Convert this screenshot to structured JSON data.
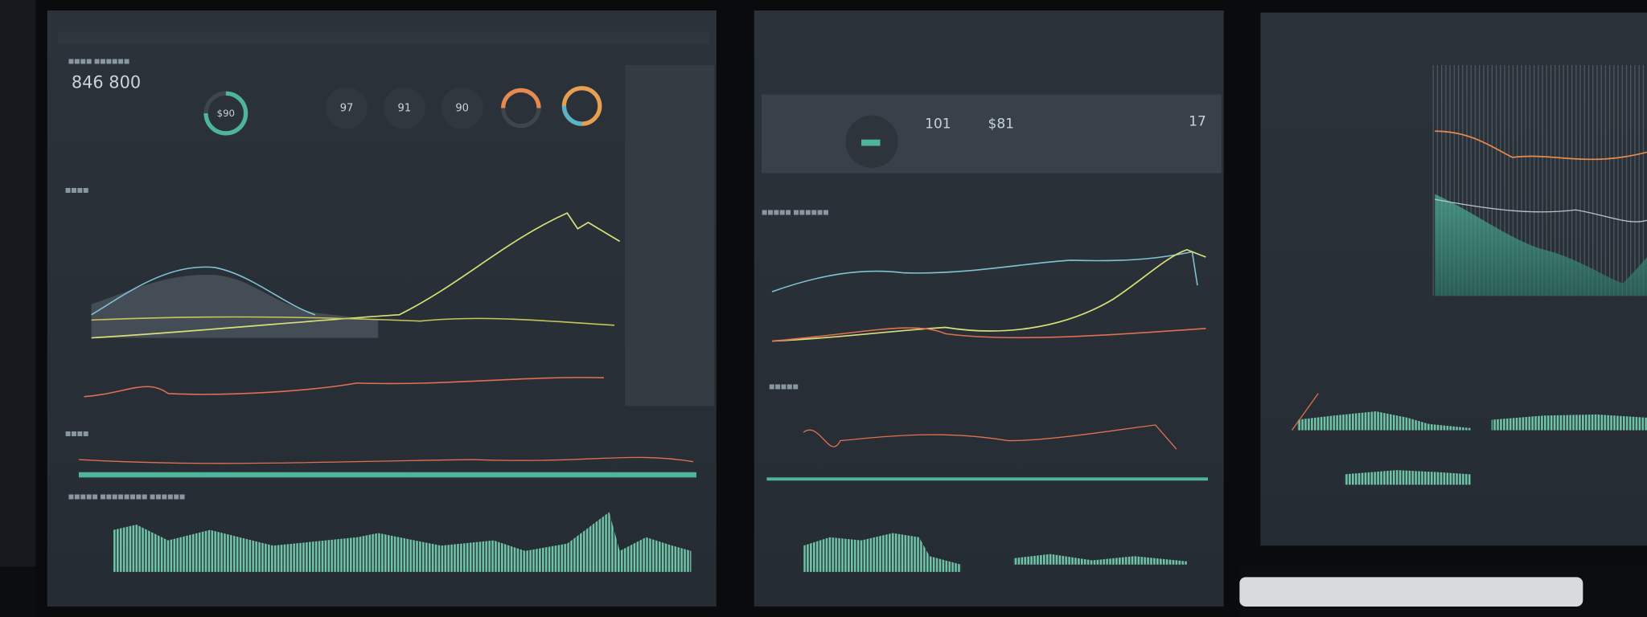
{
  "screens": [
    {
      "heading": "846 800",
      "gauges": [
        "$90",
        "97",
        "91",
        "90"
      ]
    },
    {
      "stats": [
        "101",
        "$81",
        "17"
      ]
    }
  ]
}
